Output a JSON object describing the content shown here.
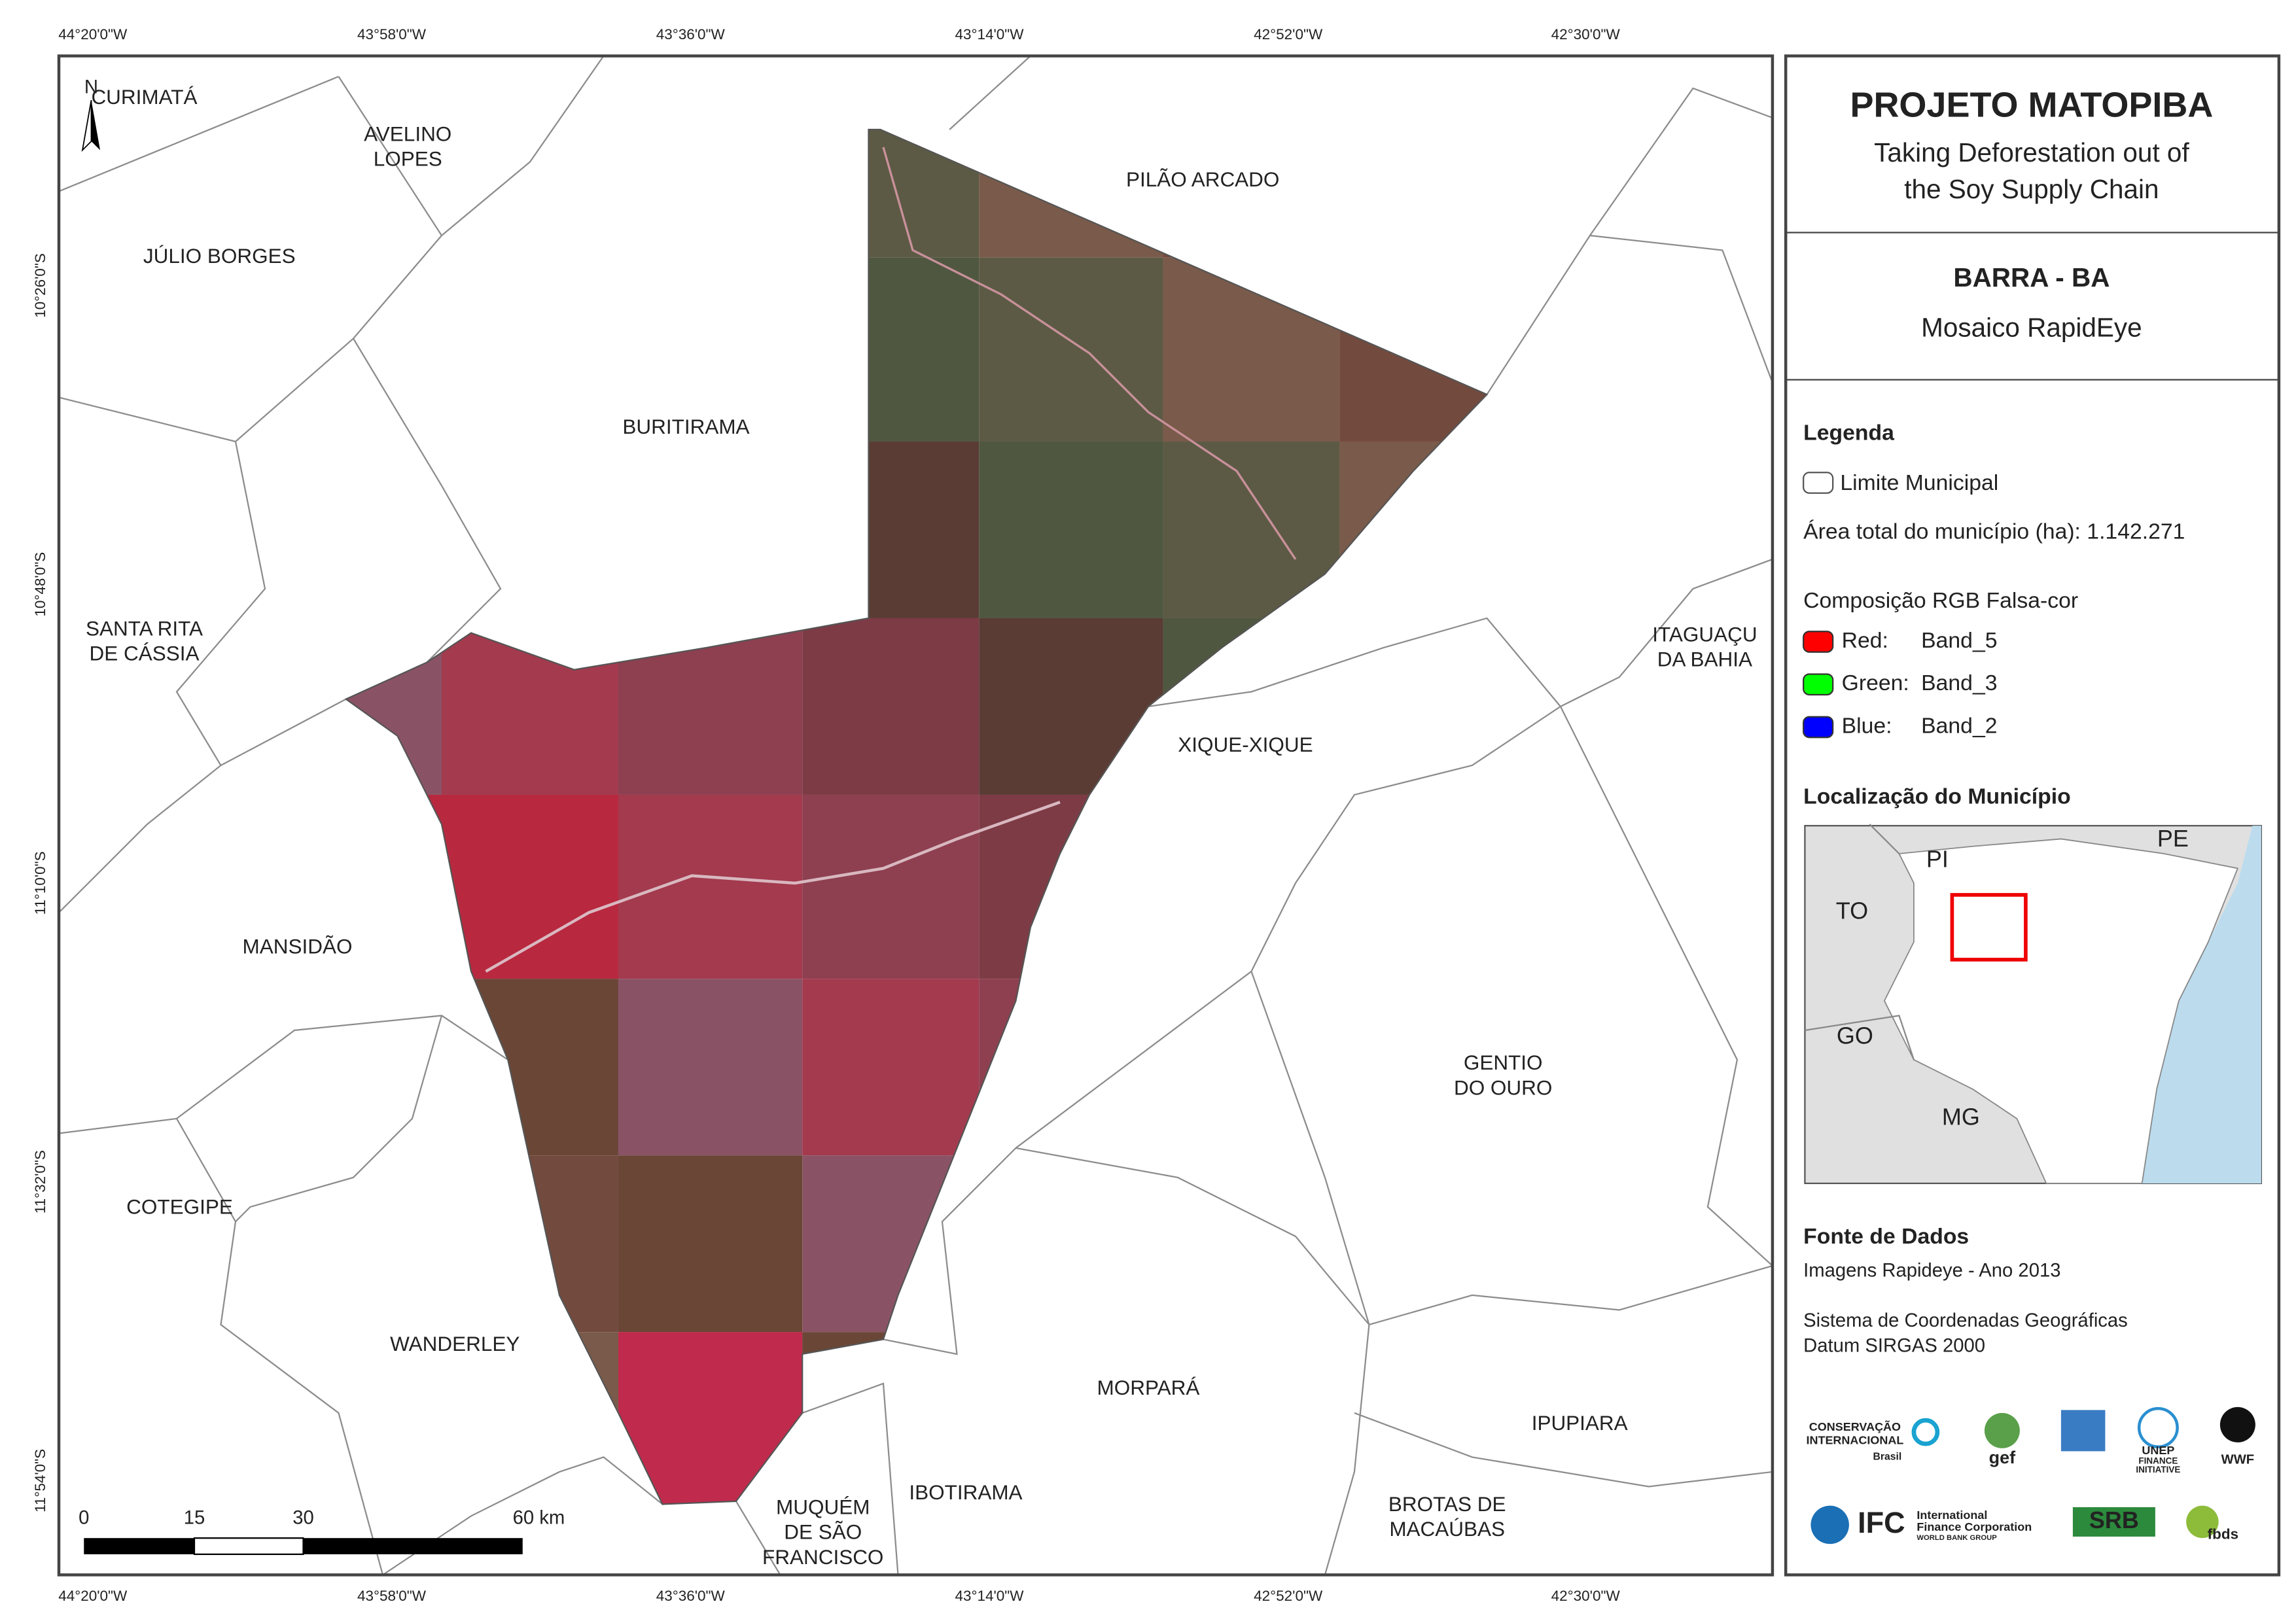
{
  "header": {
    "title": "PROJETO MATOPIBA",
    "subtitle": [
      "Taking Deforestation out of",
      "the Soy Supply Chain"
    ]
  },
  "municipality": {
    "name": "BARRA - BA",
    "product": "Mosaico RapidEye"
  },
  "legend": {
    "title": "Legenda",
    "boundary": "Limite Municipal",
    "area": "Área total do município (ha): 1.142.271",
    "composition": "Composição RGB Falsa-cor",
    "bands": [
      {
        "channel": "Red:",
        "band": "Band_5",
        "color": "#ff0000"
      },
      {
        "channel": "Green:",
        "band": "Band_3",
        "color": "#00ff00"
      },
      {
        "channel": "Blue:",
        "band": "Band_2",
        "color": "#0000ff"
      }
    ]
  },
  "location": {
    "title": "Localização do Município",
    "states": [
      "PI",
      "PE",
      "TO",
      "GO",
      "MG"
    ]
  },
  "sources": {
    "title": "Fonte de Dados",
    "lines": [
      "Imagens Rapideye - Ano 2013",
      "Sistema de Coordenadas Geográficas",
      "Datum SIRGAS 2000"
    ]
  },
  "logos": [
    "CONSERVAÇÃO",
    "INTERNACIONAL",
    "Brasil",
    "gef",
    "UNEP",
    "FINANCE",
    "INITIATIVE",
    "WWF",
    "IFC",
    "International",
    "Finance Corporation",
    "WORLD BANK GROUP",
    "SRB",
    "fbds"
  ],
  "map": {
    "north": "N",
    "longitudes": [
      "44°20'0\"W",
      "43°58'0\"W",
      "43°36'0\"W",
      "43°14'0\"W",
      "42°52'0\"W",
      "42°30'0\"W"
    ],
    "latitudes": [
      "10°26'0\"S",
      "10°48'0\"S",
      "11°10'0\"S",
      "11°32'0\"S",
      "11°54'0\"S"
    ],
    "scale": [
      "0",
      "15",
      "30",
      "60 km"
    ],
    "places": [
      {
        "lines": [
          "CURIMATÁ"
        ]
      },
      {
        "lines": [
          "AVELINO",
          "LOPES"
        ]
      },
      {
        "lines": [
          "JÚLIO BORGES"
        ]
      },
      {
        "lines": [
          "BURITIRAMA"
        ]
      },
      {
        "lines": [
          "PILÃO ARCADO"
        ]
      },
      {
        "lines": [
          "SANTA RITA",
          "DE CÁSSIA"
        ]
      },
      {
        "lines": [
          "ITAGUAÇU",
          "DA BAHIA"
        ]
      },
      {
        "lines": [
          "XIQUE-XIQUE"
        ]
      },
      {
        "lines": [
          "MANSIDÃO"
        ]
      },
      {
        "lines": [
          "GENTIO",
          "DO OURO"
        ]
      },
      {
        "lines": [
          "COTEGIPE"
        ]
      },
      {
        "lines": [
          "WANDERLEY"
        ]
      },
      {
        "lines": [
          "MORPARÁ"
        ]
      },
      {
        "lines": [
          "IPUPIARA"
        ]
      },
      {
        "lines": [
          "BROTAS DE",
          "MACAÚBAS"
        ]
      },
      {
        "lines": [
          "MUQUÉM",
          "DE SÃO",
          "FRANCISCO"
        ]
      },
      {
        "lines": [
          "IBOTIRAMA"
        ]
      }
    ]
  }
}
